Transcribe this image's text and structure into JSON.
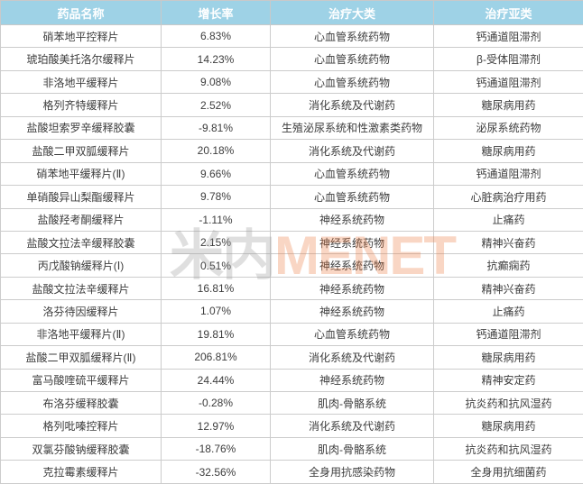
{
  "chart_data": {
    "type": "table",
    "columns": [
      "药品名称",
      "增长率",
      "治疗大类",
      "治疗亚类"
    ],
    "rows": [
      [
        "硝苯地平控释片",
        "6.83%",
        "心血管系统药物",
        "钙通道阻滞剂"
      ],
      [
        "琥珀酸美托洛尔缓释片",
        "14.23%",
        "心血管系统药物",
        "β-受体阻滞剂"
      ],
      [
        "非洛地平缓释片",
        "9.08%",
        "心血管系统药物",
        "钙通道阻滞剂"
      ],
      [
        "格列齐特缓释片",
        "2.52%",
        "消化系统及代谢药",
        "糖尿病用药"
      ],
      [
        "盐酸坦索罗辛缓释胶囊",
        "-9.81%",
        "生殖泌尿系统和性激素类药物",
        "泌尿系统药物"
      ],
      [
        "盐酸二甲双胍缓释片",
        "20.18%",
        "消化系统及代谢药",
        "糖尿病用药"
      ],
      [
        "硝苯地平缓释片(Ⅱ)",
        "9.66%",
        "心血管系统药物",
        "钙通道阻滞剂"
      ],
      [
        "单硝酸异山梨酯缓释片",
        "9.78%",
        "心血管系统药物",
        "心脏病治疗用药"
      ],
      [
        "盐酸羟考酮缓释片",
        "-1.11%",
        "神经系统药物",
        "止痛药"
      ],
      [
        "盐酸文拉法辛缓释胶囊",
        "2.15%",
        "神经系统药物",
        "精神兴奋药"
      ],
      [
        "丙戊酸钠缓释片(Ⅰ)",
        "0.51%",
        "神经系统药物",
        "抗癫痫药"
      ],
      [
        "盐酸文拉法辛缓释片",
        "16.81%",
        "神经系统药物",
        "精神兴奋药"
      ],
      [
        "洛芬待因缓释片",
        "1.07%",
        "神经系统药物",
        "止痛药"
      ],
      [
        "非洛地平缓释片(Ⅱ)",
        "19.81%",
        "心血管系统药物",
        "钙通道阻滞剂"
      ],
      [
        "盐酸二甲双胍缓释片(Ⅱ)",
        "206.81%",
        "消化系统及代谢药",
        "糖尿病用药"
      ],
      [
        "富马酸喹硫平缓释片",
        "24.44%",
        "神经系统药物",
        "精神安定药"
      ],
      [
        "布洛芬缓释胶囊",
        "-0.28%",
        "肌肉-骨骼系统",
        "抗炎药和抗风湿药"
      ],
      [
        "格列吡嗪控释片",
        "12.97%",
        "消化系统及代谢药",
        "糖尿病用药"
      ],
      [
        "双氯芬酸钠缓释胶囊",
        "-18.76%",
        "肌肉-骨骼系统",
        "抗炎药和抗风湿药"
      ],
      [
        "克拉霉素缓释片",
        "-32.56%",
        "全身用抗感染药物",
        "全身用抗细菌药"
      ]
    ]
  },
  "watermark": {
    "cn": "米内",
    "en": "MENET"
  },
  "colors": {
    "header_bg": "#9ed2e6",
    "header_text": "#ffffff",
    "border": "#cccccc",
    "row_text": "#3d3d3d",
    "watermark_gray": "rgba(150,150,150,0.30)",
    "watermark_orange": "rgba(235,120,60,0.30)"
  }
}
